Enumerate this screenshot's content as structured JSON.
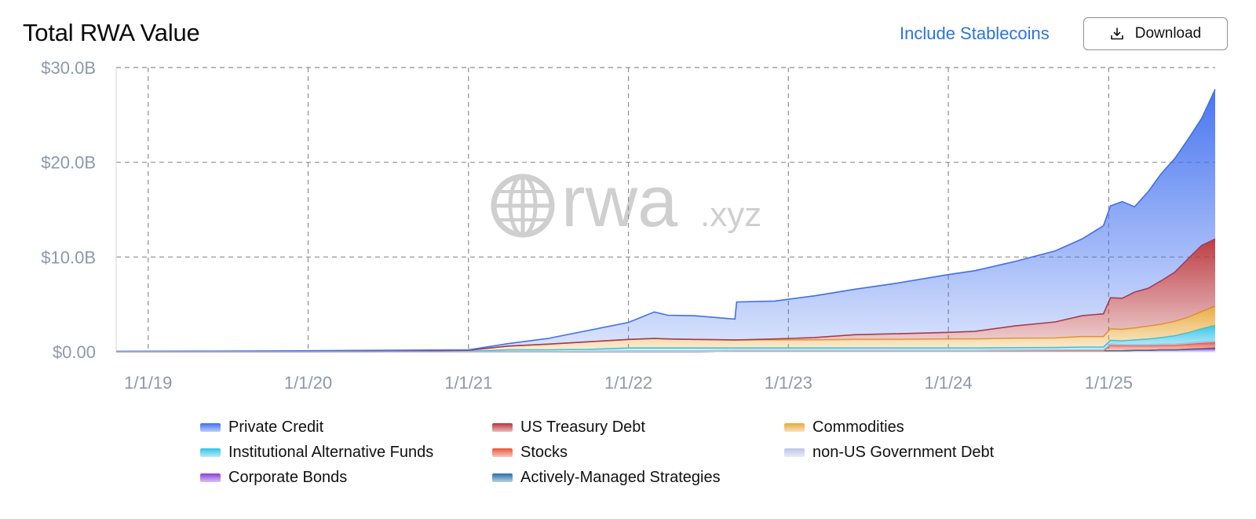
{
  "header": {
    "title": "Total RWA Value",
    "include_stablecoins_label": "Include Stablecoins",
    "download_label": "Download"
  },
  "watermark": {
    "brand": "rwa",
    "suffix": ".xyz"
  },
  "chart_data": {
    "type": "area",
    "stacked": true,
    "title": "Total RWA Value",
    "xlabel": "",
    "ylabel": "",
    "x_ticks": [
      "1/1/19",
      "1/1/20",
      "1/1/21",
      "1/1/22",
      "1/1/23",
      "1/1/24",
      "1/1/25"
    ],
    "y_ticks": [
      "$0.00",
      "$10.0B",
      "$20.0B",
      "$30.0B"
    ],
    "y_tick_values": [
      0,
      10,
      20,
      30
    ],
    "ylim": [
      0,
      30
    ],
    "y_unit": "$B",
    "x_range": [
      "2018-10-20",
      "2025-09-01"
    ],
    "grid": true,
    "legend_position": "bottom",
    "x": [
      "2018-10-20",
      "2019-06-01",
      "2020-01-01",
      "2020-06-01",
      "2021-01-01",
      "2021-04-01",
      "2021-07-01",
      "2021-10-01",
      "2022-01-01",
      "2022-03-01",
      "2022-04-01",
      "2022-06-01",
      "2022-09-01",
      "2022-09-05",
      "2022-12-01",
      "2023-03-01",
      "2023-06-01",
      "2023-09-01",
      "2024-01-01",
      "2024-03-01",
      "2024-06-01",
      "2024-09-01",
      "2024-11-01",
      "2024-12-20",
      "2025-01-05",
      "2025-02-01",
      "2025-03-01",
      "2025-04-01",
      "2025-05-01",
      "2025-06-01",
      "2025-07-01",
      "2025-08-01",
      "2025-09-01"
    ],
    "series": [
      {
        "name": "Corporate Bonds",
        "color": "#8b3fd9",
        "values": [
          0,
          0,
          0,
          0,
          0,
          0,
          0,
          0,
          0,
          0,
          0,
          0,
          0.05,
          0.05,
          0.05,
          0.05,
          0.05,
          0.05,
          0.05,
          0.05,
          0.08,
          0.1,
          0.1,
          0.1,
          0.1,
          0.1,
          0.15,
          0.15,
          0.2,
          0.2,
          0.25,
          0.3,
          0.35
        ]
      },
      {
        "name": "Actively-Managed Strategies",
        "color": "#2b6ea8",
        "values": [
          0,
          0,
          0,
          0,
          0,
          0,
          0,
          0,
          0,
          0,
          0,
          0,
          0,
          0,
          0,
          0,
          0,
          0,
          0,
          0,
          0,
          0,
          0,
          0,
          0,
          0,
          0,
          0,
          0,
          0,
          0.02,
          0.03,
          0.05
        ]
      },
      {
        "name": "Stocks",
        "color": "#e8553a",
        "values": [
          0,
          0,
          0,
          0,
          0,
          0,
          0,
          0,
          0,
          0,
          0,
          0,
          0,
          0,
          0,
          0,
          0,
          0,
          0,
          0,
          0,
          0,
          0,
          0,
          0.6,
          0.55,
          0.5,
          0.5,
          0.5,
          0.5,
          0.55,
          0.6,
          0.6
        ]
      },
      {
        "name": "non-US Government Debt",
        "color": "#b8c6e8",
        "values": [
          0,
          0,
          0,
          0,
          0,
          0,
          0,
          0.05,
          0.1,
          0.1,
          0.1,
          0.1,
          0.1,
          0.1,
          0.1,
          0.1,
          0.1,
          0.1,
          0.1,
          0.1,
          0.1,
          0.1,
          0.1,
          0.1,
          0.1,
          0.1,
          0.1,
          0.1,
          0.1,
          0.1,
          0.1,
          0.1,
          0.1
        ]
      },
      {
        "name": "Institutional Alternative Funds",
        "color": "#2fc3e8",
        "values": [
          0,
          0,
          0.01,
          0.02,
          0.05,
          0.2,
          0.2,
          0.2,
          0.3,
          0.3,
          0.3,
          0.3,
          0.25,
          0.25,
          0.25,
          0.25,
          0.25,
          0.25,
          0.25,
          0.25,
          0.25,
          0.25,
          0.3,
          0.3,
          0.4,
          0.4,
          0.5,
          0.6,
          0.7,
          0.9,
          1.1,
          1.4,
          1.7
        ]
      },
      {
        "name": "Commodities",
        "color": "#e8a93a",
        "values": [
          0,
          0,
          0,
          0,
          0.1,
          0.4,
          0.6,
          0.8,
          0.9,
          1.0,
          0.95,
          0.9,
          0.85,
          0.85,
          0.85,
          0.85,
          0.9,
          0.9,
          0.95,
          0.95,
          1.0,
          1.0,
          1.1,
          1.1,
          1.2,
          1.2,
          1.25,
          1.35,
          1.4,
          1.5,
          1.6,
          1.8,
          2.0
        ]
      },
      {
        "name": "US Treasury Debt",
        "color": "#b8343a",
        "values": [
          0,
          0,
          0,
          0,
          0,
          0,
          0,
          0,
          0,
          0,
          0,
          0,
          0,
          0,
          0.1,
          0.25,
          0.5,
          0.6,
          0.7,
          0.8,
          1.3,
          1.7,
          2.2,
          2.4,
          3.3,
          3.3,
          3.8,
          4.0,
          4.6,
          5.2,
          6.2,
          7.0,
          7.1
        ]
      },
      {
        "name": "Private Credit",
        "color": "#3f6ff0",
        "values": [
          0.05,
          0.07,
          0.1,
          0.13,
          0.05,
          0.25,
          0.6,
          1.2,
          1.8,
          2.8,
          2.5,
          2.5,
          2.2,
          4.0,
          4.0,
          4.4,
          4.8,
          5.3,
          6.1,
          6.4,
          6.8,
          7.5,
          8.1,
          9.3,
          9.7,
          10.2,
          9.0,
          10.2,
          11.3,
          12.0,
          12.6,
          13.4,
          15.8
        ]
      }
    ]
  },
  "legend": [
    {
      "name": "Private Credit",
      "color": "#3f6ff0"
    },
    {
      "name": "US Treasury Debt",
      "color": "#b8343a"
    },
    {
      "name": "Commodities",
      "color": "#e8a93a"
    },
    {
      "name": "Institutional Alternative Funds",
      "color": "#2fc3e8"
    },
    {
      "name": "Stocks",
      "color": "#e8553a"
    },
    {
      "name": "non-US Government Debt",
      "color": "#b8c6e8"
    },
    {
      "name": "Corporate Bonds",
      "color": "#8b3fd9"
    },
    {
      "name": "Actively-Managed Strategies",
      "color": "#2b6ea8"
    }
  ]
}
